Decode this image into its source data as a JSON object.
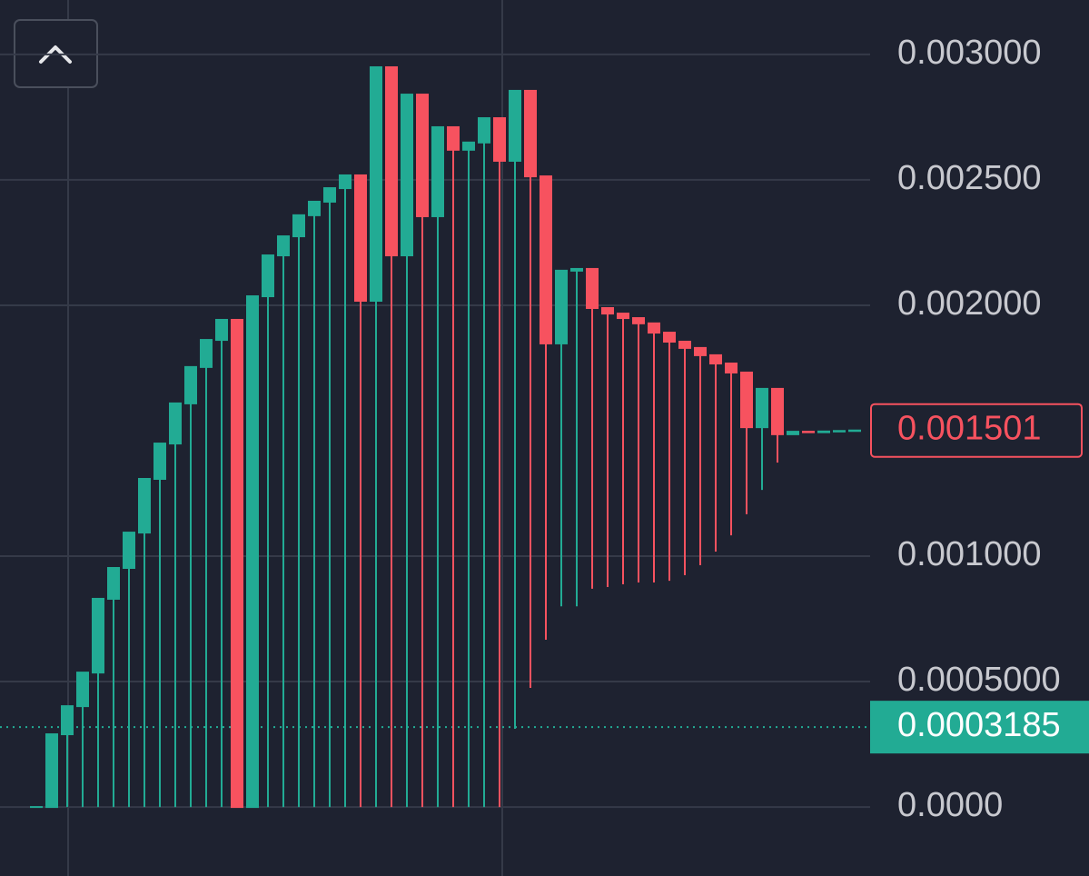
{
  "chart_data": {
    "type": "candlestick",
    "ylim": [
      -0.000275,
      0.003217
    ],
    "yticks": [
      {
        "value": 0,
        "label": "0.0000"
      },
      {
        "value": 0.0005,
        "label": "0.0005000"
      },
      {
        "value": 0.001,
        "label": "0.001000"
      },
      {
        "value": 0.002,
        "label": "0.002000"
      },
      {
        "value": 0.0025,
        "label": "0.002500"
      },
      {
        "value": 0.003,
        "label": "0.003000"
      }
    ],
    "grid": true,
    "up_color": "#22ab94",
    "down_color": "#f7525f",
    "open": [
      0,
      0,
      0.00029,
      0.000402,
      0.000536,
      0.00083,
      0.000953,
      0.001094,
      0.001308,
      0.001449,
      0.001609,
      0.001754,
      0.001862,
      0.001942,
      0,
      0.002036,
      0.002199,
      0.002275,
      0.002359,
      0.002413,
      0.002467,
      0.002518,
      0.002018,
      0.002949,
      0.002199,
      0.00284,
      0.002355,
      0.00271,
      0.00262,
      0.002649,
      0.002746,
      0.002576,
      0.002855,
      0.002514,
      0.001848,
      0.002138,
      0.002145,
      0.001989,
      0.001967,
      0.001949,
      0.001928,
      0.001891,
      0.001855,
      0.00183,
      0.001801,
      0.001768,
      0.001732,
      0.001514,
      0.001667,
      0.001486,
      0.001496,
      0.001494,
      0.001497,
      0.001499
    ],
    "high": [
      0,
      0.00029,
      0.000402,
      0.000536,
      0.00083,
      0.000953,
      0.001094,
      0.001308,
      0.001449,
      0.001609,
      0.001754,
      0.001862,
      0.001942,
      0.001942,
      0.002036,
      0.002199,
      0.002275,
      0.002359,
      0.002413,
      0.002467,
      0.002518,
      0.002518,
      0.002949,
      0.002949,
      0.00284,
      0.00284,
      0.00271,
      0.00271,
      0.002649,
      0.002746,
      0.002746,
      0.002855,
      0.002855,
      0.002514,
      0.002138,
      0.002145,
      0.002145,
      0.001989,
      0.001967,
      0.001949,
      0.001928,
      0.001891,
      0.001855,
      0.00183,
      0.001801,
      0.001768,
      0.001732,
      0.001667,
      0.001667,
      0.001496,
      0.001496,
      0.001497,
      0.001499,
      0.001501
    ],
    "low": [
      0,
      0,
      0,
      0,
      0,
      0,
      0,
      0,
      0,
      0,
      0,
      0,
      0,
      0,
      0,
      0,
      0,
      0,
      0,
      0,
      0,
      0,
      0,
      0,
      0,
      0,
      0,
      0,
      0,
      0,
      0,
      0.000312,
      0.000475,
      0.000667,
      0.0008,
      0.0008,
      0.00087,
      0.000877,
      0.000888,
      0.000895,
      0.000895,
      0.000902,
      0.000924,
      0.000964,
      0.001018,
      0.001083,
      0.001167,
      0.001264,
      0.001373,
      0.001486,
      0.001494,
      0.001494,
      0.001497,
      0.001499
    ],
    "close": [
      0,
      0.00029,
      0.000402,
      0.000536,
      0.00083,
      0.000953,
      0.001094,
      0.001308,
      0.001449,
      0.001609,
      0.001754,
      0.001862,
      0.001942,
      0,
      0.002036,
      0.002199,
      0.002275,
      0.002359,
      0.002413,
      0.002467,
      0.002518,
      0.002018,
      0.002949,
      0.002199,
      0.00284,
      0.002355,
      0.00271,
      0.00262,
      0.002649,
      0.002746,
      0.002576,
      0.002855,
      0.002514,
      0.001848,
      0.002138,
      0.002145,
      0.001989,
      0.001967,
      0.001949,
      0.001928,
      0.001891,
      0.001855,
      0.00183,
      0.001801,
      0.001768,
      0.001732,
      0.001514,
      0.001667,
      0.001486,
      0.001496,
      0.001494,
      0.001497,
      0.001499,
      0.001501
    ],
    "last_price": {
      "value": 0.001501,
      "label": "0.001501"
    },
    "low_price": {
      "value": 0.0003185,
      "label": "0.0003185"
    }
  }
}
